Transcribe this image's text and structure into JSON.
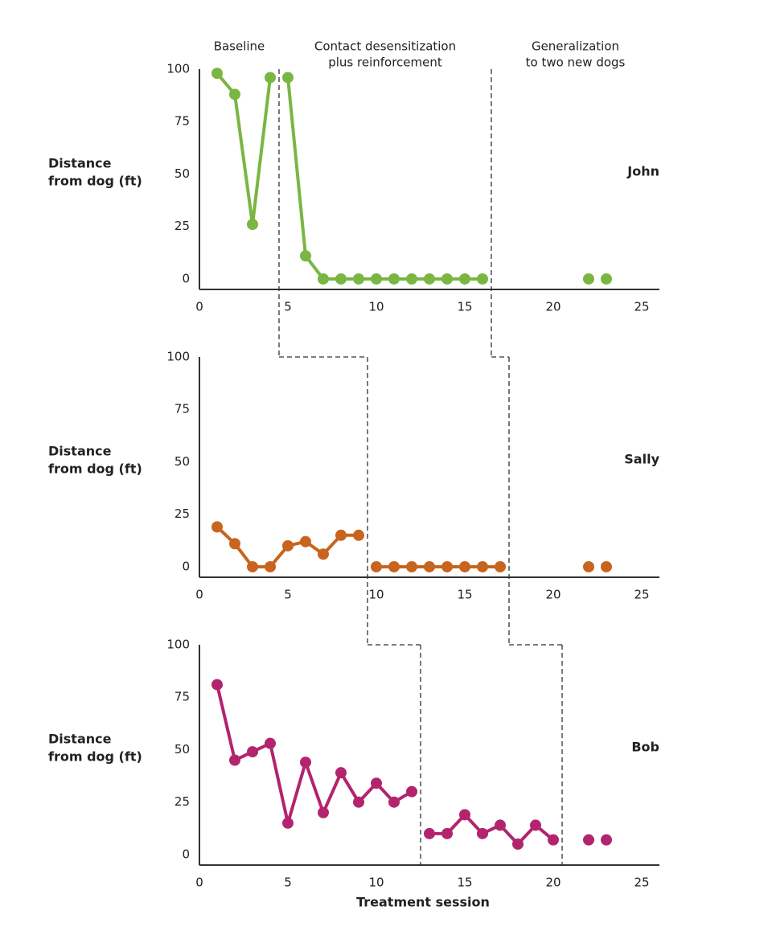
{
  "chart_data": [
    {
      "type": "line",
      "title": "John",
      "ylabel": [
        "Distance",
        "from dog (ft)"
      ],
      "phase_labels": [
        [
          "Baseline"
        ],
        [
          "Contact desensitization",
          "plus reinforcement"
        ],
        [
          "Generalization",
          "to two new dogs"
        ]
      ],
      "x": [
        1,
        2,
        3,
        4,
        5,
        6,
        7,
        8,
        9,
        10,
        11,
        12,
        13,
        14,
        15,
        16,
        22,
        23
      ],
      "values": [
        98,
        88,
        26,
        96,
        96,
        11,
        0,
        0,
        0,
        0,
        0,
        0,
        0,
        0,
        0,
        0,
        0,
        0
      ],
      "color": "#7ab642",
      "xlim": [
        0,
        26
      ],
      "ylim": [
        -5,
        100
      ],
      "xticks": [
        0,
        5,
        10,
        15,
        20,
        25
      ],
      "yticks": [
        0,
        25,
        50,
        75,
        100
      ],
      "phase_changes": [
        4.5,
        16.5
      ],
      "connected_phases": [
        true,
        true,
        false
      ]
    },
    {
      "type": "line",
      "title": "Sally",
      "ylabel": [
        "Distance",
        "from dog (ft)"
      ],
      "x": [
        1,
        2,
        3,
        4,
        5,
        6,
        7,
        8,
        9,
        10,
        11,
        12,
        13,
        14,
        15,
        16,
        17,
        22,
        23
      ],
      "values": [
        19,
        11,
        0,
        0,
        10,
        12,
        6,
        15,
        15,
        0,
        0,
        0,
        0,
        0,
        0,
        0,
        0,
        0,
        0
      ],
      "color": "#c8641e",
      "xlim": [
        0,
        26
      ],
      "ylim": [
        -5,
        100
      ],
      "xticks": [
        0,
        5,
        10,
        15,
        20,
        25
      ],
      "yticks": [
        0,
        25,
        50,
        75,
        100
      ],
      "phase_changes": [
        9.5,
        17.5
      ],
      "connected_phases": [
        true,
        true,
        false
      ]
    },
    {
      "type": "line",
      "title": "Bob",
      "ylabel": [
        "Distance",
        "from dog (ft)"
      ],
      "xlabel": "Treatment session",
      "x": [
        1,
        2,
        3,
        4,
        5,
        6,
        7,
        8,
        9,
        10,
        11,
        12,
        13,
        14,
        15,
        16,
        17,
        18,
        19,
        20,
        22,
        23
      ],
      "values": [
        81,
        45,
        49,
        53,
        15,
        44,
        20,
        39,
        25,
        34,
        25,
        30,
        10,
        10,
        19,
        10,
        14,
        5,
        14,
        7,
        7,
        7
      ],
      "color": "#b3246e",
      "xlim": [
        0,
        26
      ],
      "ylim": [
        -5,
        100
      ],
      "xticks": [
        0,
        5,
        10,
        15,
        20,
        25
      ],
      "yticks": [
        0,
        25,
        50,
        75,
        100
      ],
      "phase_changes": [
        12.5,
        20.5
      ],
      "connected_phases": [
        true,
        true,
        false
      ]
    }
  ]
}
